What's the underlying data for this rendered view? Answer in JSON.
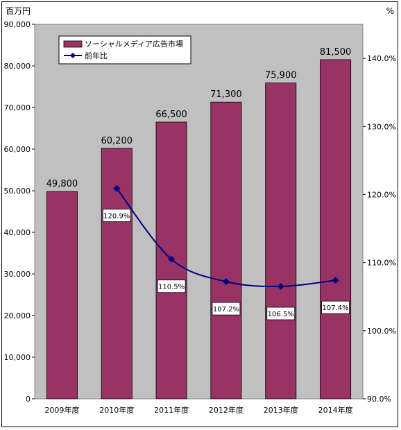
{
  "chart_data": {
    "type": "bar",
    "categories": [
      "2009年度",
      "2010年度",
      "2011年度",
      "2012年度",
      "2013年度",
      "2014年度"
    ],
    "series": [
      {
        "name": "ソーシャルメディア広告市場",
        "type": "bar",
        "axis": "left",
        "color": "#993366",
        "values": [
          49800,
          60200,
          66500,
          71300,
          75900,
          81500
        ],
        "labels": [
          "49,800",
          "60,200",
          "66,500",
          "71,300",
          "75,900",
          "81,500"
        ]
      },
      {
        "name": "前年比",
        "type": "line",
        "axis": "right",
        "color": "#000080",
        "values": [
          null,
          120.9,
          110.5,
          107.2,
          106.5,
          107.4
        ],
        "labels": [
          "",
          "120.9%",
          "110.5%",
          "107.2%",
          "106.5%",
          "107.4%"
        ]
      }
    ],
    "y_left": {
      "unit": "百万円",
      "ylim": [
        0,
        90000
      ],
      "ticks": [
        0,
        10000,
        20000,
        30000,
        40000,
        50000,
        60000,
        70000,
        80000,
        90000
      ],
      "tick_labels": [
        "0",
        "10,000",
        "20,000",
        "30,000",
        "40,000",
        "50,000",
        "60,000",
        "70,000",
        "80,000",
        "90,000"
      ]
    },
    "y_right": {
      "unit": "%",
      "ylim": [
        90,
        145
      ],
      "ticks": [
        90,
        100,
        110,
        120,
        130,
        140
      ],
      "tick_labels": [
        "90.0%",
        "100.0%",
        "110.0%",
        "120.0%",
        "130.0%",
        "140.0%"
      ]
    },
    "grid": false,
    "legend": "top-left",
    "plot_background": "#c0c0c0"
  }
}
